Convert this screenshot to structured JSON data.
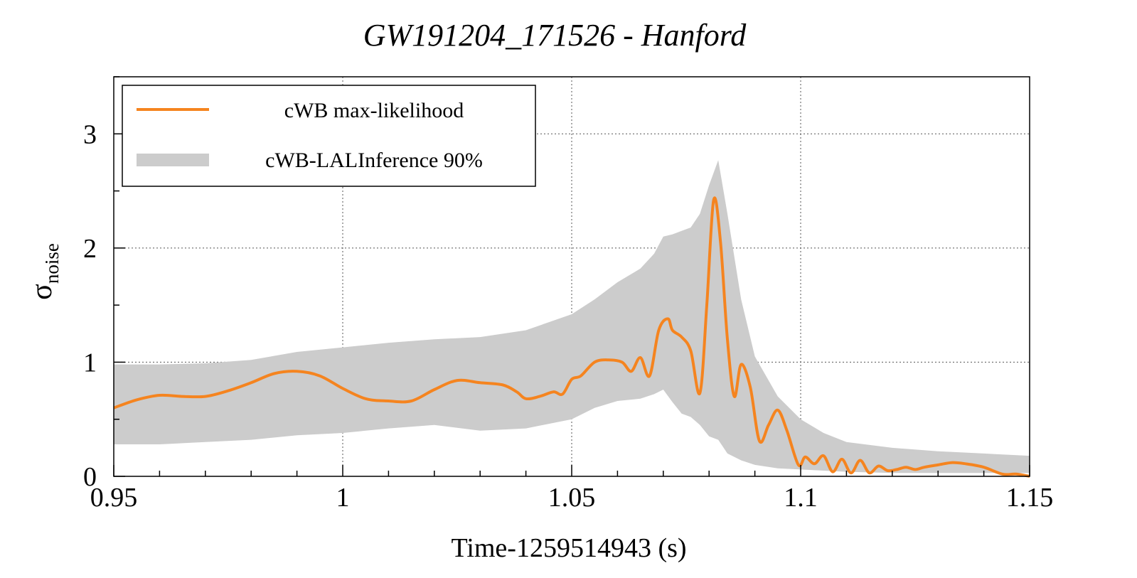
{
  "chart_data": {
    "type": "line",
    "title": "GW191204_171526 - Hanford",
    "xlabel": "Time-1259514943 (s)",
    "ylabel": {
      "symbol": "σ",
      "subscript": "noise"
    },
    "xlim": [
      0.95,
      1.15
    ],
    "ylim": [
      0,
      3.5
    ],
    "xticks": [
      0.95,
      1.0,
      1.05,
      1.1,
      1.15
    ],
    "xtick_labels": [
      "0.95",
      "1",
      "1.05",
      "1.1",
      "1.15"
    ],
    "yticks": [
      0,
      1,
      2,
      3
    ],
    "ytick_labels": [
      "0",
      "1",
      "2",
      "3"
    ],
    "grid": true,
    "legend_position": "top-left",
    "colors": {
      "line": "#f5841f",
      "band": "#cccccc"
    },
    "legend": [
      {
        "label": "cWB max-likelihood",
        "kind": "line"
      },
      {
        "label": "cWB-LALInference 90%",
        "kind": "band"
      }
    ],
    "series": [
      {
        "name": "cWB max-likelihood",
        "x": [
          0.95,
          0.955,
          0.96,
          0.965,
          0.97,
          0.975,
          0.98,
          0.985,
          0.99,
          0.995,
          1.0,
          1.005,
          1.01,
          1.015,
          1.02,
          1.025,
          1.03,
          1.035,
          1.038,
          1.04,
          1.043,
          1.046,
          1.048,
          1.05,
          1.052,
          1.055,
          1.058,
          1.061,
          1.063,
          1.065,
          1.067,
          1.069,
          1.071,
          1.072,
          1.074,
          1.076,
          1.078,
          1.0795,
          1.081,
          1.0825,
          1.084,
          1.0855,
          1.087,
          1.089,
          1.091,
          1.093,
          1.095,
          1.097,
          1.0995,
          1.101,
          1.103,
          1.105,
          1.107,
          1.109,
          1.111,
          1.113,
          1.115,
          1.117,
          1.119,
          1.121,
          1.123,
          1.125,
          1.127,
          1.13,
          1.133,
          1.136,
          1.14,
          1.144,
          1.147,
          1.15
        ],
        "y": [
          0.6,
          0.67,
          0.71,
          0.7,
          0.7,
          0.75,
          0.82,
          0.9,
          0.92,
          0.88,
          0.77,
          0.68,
          0.66,
          0.66,
          0.76,
          0.84,
          0.82,
          0.8,
          0.74,
          0.68,
          0.7,
          0.74,
          0.72,
          0.85,
          0.88,
          1.0,
          1.02,
          1.0,
          0.92,
          1.04,
          0.88,
          1.28,
          1.38,
          1.28,
          1.22,
          1.1,
          0.73,
          1.5,
          2.42,
          2.05,
          1.2,
          0.7,
          0.98,
          0.78,
          0.31,
          0.45,
          0.58,
          0.4,
          0.1,
          0.17,
          0.11,
          0.18,
          0.04,
          0.15,
          0.03,
          0.14,
          0.03,
          0.09,
          0.05,
          0.06,
          0.08,
          0.06,
          0.08,
          0.1,
          0.12,
          0.11,
          0.08,
          0.02,
          0.02,
          0.0
        ]
      }
    ],
    "band": {
      "name": "cWB-LALInference 90%",
      "x": [
        0.95,
        0.96,
        0.97,
        0.98,
        0.99,
        1.0,
        1.01,
        1.02,
        1.03,
        1.04,
        1.05,
        1.055,
        1.06,
        1.065,
        1.068,
        1.07,
        1.072,
        1.074,
        1.076,
        1.078,
        1.08,
        1.082,
        1.084,
        1.087,
        1.09,
        1.095,
        1.1,
        1.105,
        1.11,
        1.12,
        1.13,
        1.14,
        1.15
      ],
      "upper": [
        0.98,
        0.98,
        0.99,
        1.02,
        1.09,
        1.13,
        1.17,
        1.2,
        1.22,
        1.28,
        1.42,
        1.55,
        1.7,
        1.82,
        1.95,
        2.1,
        2.12,
        2.15,
        2.18,
        2.3,
        2.55,
        2.77,
        2.3,
        1.55,
        1.05,
        0.7,
        0.5,
        0.38,
        0.3,
        0.25,
        0.22,
        0.2,
        0.18
      ],
      "lower": [
        0.28,
        0.28,
        0.3,
        0.32,
        0.36,
        0.38,
        0.42,
        0.45,
        0.4,
        0.42,
        0.5,
        0.6,
        0.66,
        0.68,
        0.72,
        0.76,
        0.65,
        0.55,
        0.52,
        0.45,
        0.35,
        0.32,
        0.2,
        0.14,
        0.1,
        0.07,
        0.06,
        0.05,
        0.04,
        0.03,
        0.03,
        0.03,
        0.03
      ]
    }
  }
}
